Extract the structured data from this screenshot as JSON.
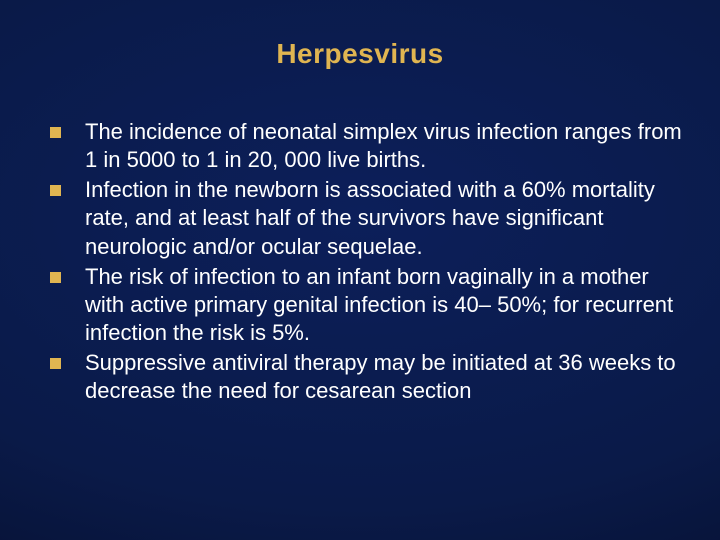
{
  "slide": {
    "title": "Herpesvirus",
    "title_color": "#e0b551",
    "title_fontsize": 28,
    "text_color": "#ffffff",
    "body_fontsize": 22,
    "bullet_color": "#e0b551",
    "bullets": [
      {
        "text": "The incidence of neonatal simplex virus infection ranges from 1 in 5000 to 1 in 20, 000 live births."
      },
      {
        "text": "Infection in the newborn is associated with a 60% mortality rate, and at least half of the survivors have significant neurologic and/or ocular sequelae."
      },
      {
        "text": "The risk of infection to an infant born vaginally in a mother with active primary genital infection is 40– 50%; for recurrent infection the risk is 5%."
      },
      {
        "text": "Suppressive antiviral therapy may be initiated at 36 weeks to decrease the need for cesarean section"
      }
    ],
    "background": {
      "center_color": "#0c1f5a",
      "mid_color": "#0a1a48",
      "outer_color": "#040c28",
      "edge_color": "#010410"
    }
  }
}
